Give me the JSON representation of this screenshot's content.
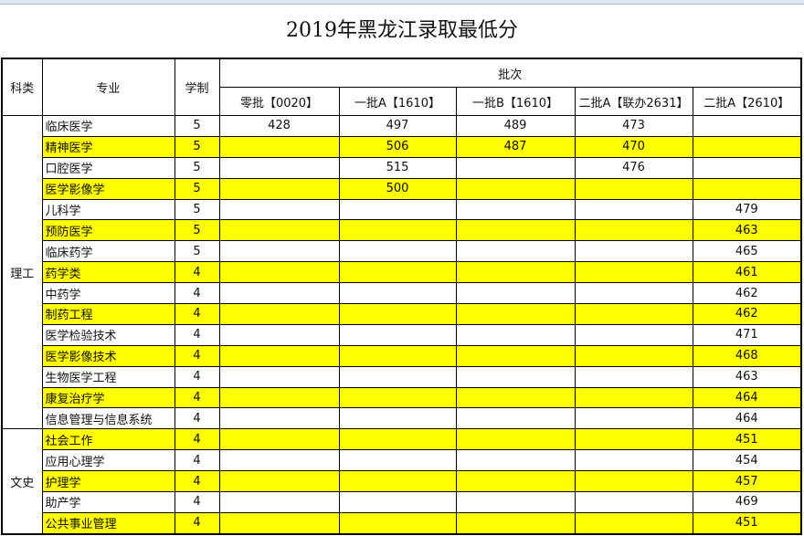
{
  "title": "2019年黑龙江录取最低分",
  "headers": {
    "category": "科类",
    "major": "专业",
    "duration": "学制",
    "batch_group": "批次",
    "batches": [
      "零批【0020】",
      "一批A【1610】",
      "一批B【1610】",
      "二批A【联办2631】",
      "二批A【2610】"
    ]
  },
  "highlight_color": "#ffff00",
  "groups": [
    {
      "category": "理工",
      "rows": [
        {
          "major": "临床医学",
          "duration": "5",
          "scores": [
            "428",
            "497",
            "489",
            "473",
            ""
          ],
          "highlight": false
        },
        {
          "major": "精神医学",
          "duration": "5",
          "scores": [
            "",
            "506",
            "487",
            "470",
            ""
          ],
          "highlight": true
        },
        {
          "major": "口腔医学",
          "duration": "5",
          "scores": [
            "",
            "515",
            "",
            "476",
            ""
          ],
          "highlight": false
        },
        {
          "major": "医学影像学",
          "duration": "5",
          "scores": [
            "",
            "500",
            "",
            "",
            ""
          ],
          "highlight": true
        },
        {
          "major": "儿科学",
          "duration": "5",
          "scores": [
            "",
            "",
            "",
            "",
            "479"
          ],
          "highlight": false
        },
        {
          "major": "预防医学",
          "duration": "5",
          "scores": [
            "",
            "",
            "",
            "",
            "463"
          ],
          "highlight": true
        },
        {
          "major": "临床药学",
          "duration": "5",
          "scores": [
            "",
            "",
            "",
            "",
            "465"
          ],
          "highlight": false
        },
        {
          "major": "药学类",
          "duration": "4",
          "scores": [
            "",
            "",
            "",
            "",
            "461"
          ],
          "highlight": true
        },
        {
          "major": "中药学",
          "duration": "4",
          "scores": [
            "",
            "",
            "",
            "",
            "462"
          ],
          "highlight": false
        },
        {
          "major": "制药工程",
          "duration": "4",
          "scores": [
            "",
            "",
            "",
            "",
            "462"
          ],
          "highlight": true
        },
        {
          "major": "医学检验技术",
          "duration": "4",
          "scores": [
            "",
            "",
            "",
            "",
            "471"
          ],
          "highlight": false
        },
        {
          "major": "医学影像技术",
          "duration": "4",
          "scores": [
            "",
            "",
            "",
            "",
            "468"
          ],
          "highlight": true
        },
        {
          "major": "生物医学工程",
          "duration": "4",
          "scores": [
            "",
            "",
            "",
            "",
            "463"
          ],
          "highlight": false
        },
        {
          "major": "康复治疗学",
          "duration": "4",
          "scores": [
            "",
            "",
            "",
            "",
            "464"
          ],
          "highlight": true
        },
        {
          "major": "信息管理与信息系统",
          "duration": "4",
          "scores": [
            "",
            "",
            "",
            "",
            "464"
          ],
          "highlight": false
        }
      ]
    },
    {
      "category": "文史",
      "rows": [
        {
          "major": "社会工作",
          "duration": "4",
          "scores": [
            "",
            "",
            "",
            "",
            "451"
          ],
          "highlight": true
        },
        {
          "major": "应用心理学",
          "duration": "4",
          "scores": [
            "",
            "",
            "",
            "",
            "454"
          ],
          "highlight": false
        },
        {
          "major": "护理学",
          "duration": "4",
          "scores": [
            "",
            "",
            "",
            "",
            "457"
          ],
          "highlight": true
        },
        {
          "major": "助产学",
          "duration": "4",
          "scores": [
            "",
            "",
            "",
            "",
            "469"
          ],
          "highlight": false
        },
        {
          "major": "公共事业管理",
          "duration": "4",
          "scores": [
            "",
            "",
            "",
            "",
            "451"
          ],
          "highlight": true
        }
      ]
    }
  ]
}
